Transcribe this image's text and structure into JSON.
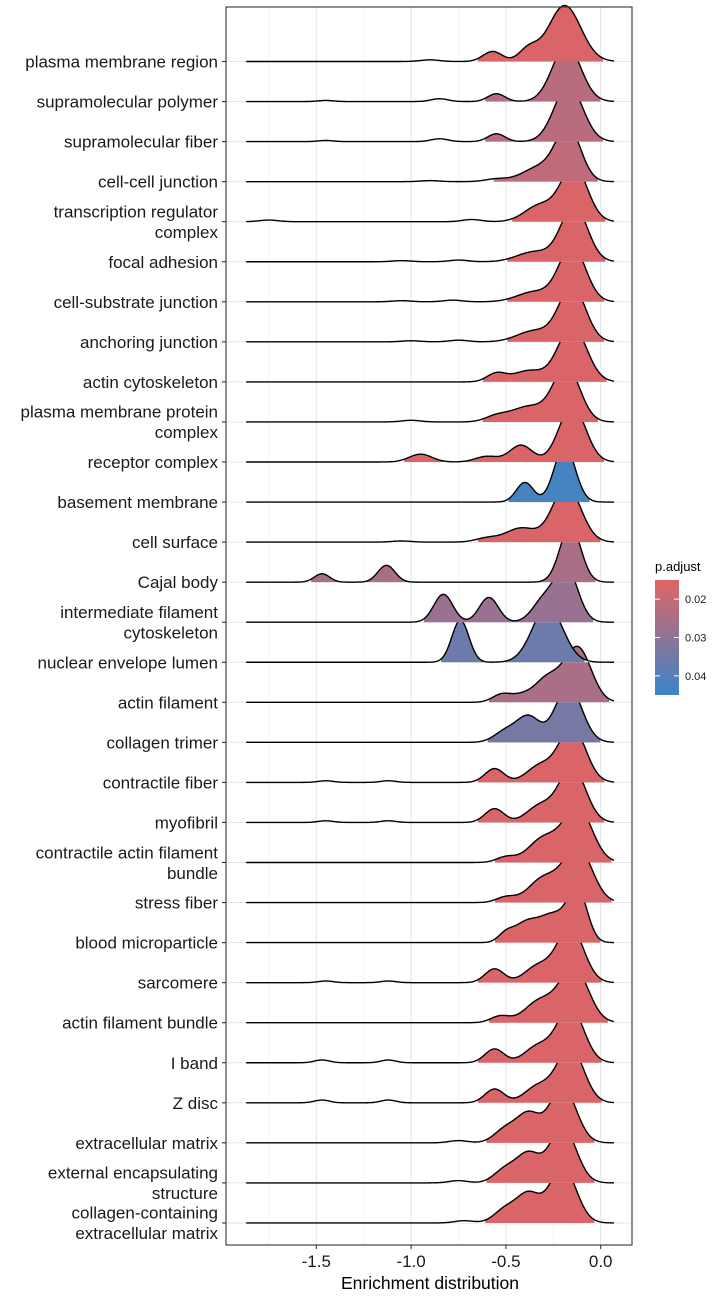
{
  "chart_data": {
    "type": "ridgeline",
    "xlabel": "Enrichment distribution",
    "ylabel": "",
    "xlim": [
      -1.97,
      0.17
    ],
    "x_ticks": [
      {
        "value": -1.5,
        "label": "-1.5"
      },
      {
        "value": -1.0,
        "label": "-1.0"
      },
      {
        "value": -0.5,
        "label": "-0.5"
      },
      {
        "value": 0.0,
        "label": "0.0"
      }
    ],
    "grid": true,
    "data_start": -1.87,
    "data_end": 0.07,
    "legend": {
      "title": "p.adjust",
      "position": "right",
      "min": 0.015,
      "max": 0.045,
      "ticks": [
        {
          "value": 0.02,
          "label": "0.02"
        },
        {
          "value": 0.03,
          "label": "0.03"
        },
        {
          "value": 0.04,
          "label": "0.04"
        }
      ],
      "color_low": "#E06466",
      "color_high": "#3A85C8"
    },
    "series": [
      {
        "lines": [
          "plasma membrane region"
        ],
        "p_adjust": 0.016,
        "peaks": [
          [
            -0.19,
            0.085,
            1.0
          ],
          [
            -0.38,
            0.05,
            0.22
          ],
          [
            -0.57,
            0.05,
            0.18
          ],
          [
            -0.9,
            0.05,
            0.03
          ]
        ]
      },
      {
        "lines": [
          "supramolecular polymer"
        ],
        "p_adjust": 0.022,
        "peaks": [
          [
            -0.18,
            0.075,
            1.0
          ],
          [
            -0.55,
            0.045,
            0.14
          ],
          [
            -0.85,
            0.045,
            0.05
          ],
          [
            -1.45,
            0.04,
            0.02
          ]
        ]
      },
      {
        "lines": [
          "supramolecular fiber"
        ],
        "p_adjust": 0.022,
        "peaks": [
          [
            -0.17,
            0.075,
            1.0
          ],
          [
            -0.55,
            0.045,
            0.14
          ],
          [
            -0.85,
            0.045,
            0.05
          ],
          [
            -1.45,
            0.04,
            0.02
          ]
        ]
      },
      {
        "lines": [
          "cell-cell junction"
        ],
        "p_adjust": 0.021,
        "peaks": [
          [
            -0.17,
            0.065,
            1.0
          ],
          [
            -0.32,
            0.09,
            0.28
          ],
          [
            -0.55,
            0.06,
            0.05
          ],
          [
            -0.9,
            0.05,
            0.02
          ]
        ]
      },
      {
        "lines": [
          "transcription regulator",
          "complex"
        ],
        "p_adjust": 0.016,
        "peaks": [
          [
            -0.14,
            0.07,
            1.0
          ],
          [
            -0.32,
            0.08,
            0.3
          ],
          [
            -0.68,
            0.05,
            0.04
          ],
          [
            -1.75,
            0.05,
            0.03
          ]
        ]
      },
      {
        "lines": [
          "focal adhesion"
        ],
        "p_adjust": 0.016,
        "peaks": [
          [
            -0.14,
            0.07,
            1.0
          ],
          [
            -0.35,
            0.09,
            0.18
          ],
          [
            -0.75,
            0.05,
            0.03
          ],
          [
            -1.05,
            0.05,
            0.02
          ]
        ]
      },
      {
        "lines": [
          "cell-substrate junction"
        ],
        "p_adjust": 0.016,
        "peaks": [
          [
            -0.15,
            0.07,
            1.0
          ],
          [
            -0.35,
            0.09,
            0.18
          ],
          [
            -0.78,
            0.05,
            0.03
          ],
          [
            -1.05,
            0.05,
            0.02
          ]
        ]
      },
      {
        "lines": [
          "anchoring junction"
        ],
        "p_adjust": 0.016,
        "peaks": [
          [
            -0.15,
            0.07,
            1.0
          ],
          [
            -0.35,
            0.09,
            0.2
          ],
          [
            -0.75,
            0.05,
            0.03
          ],
          [
            -1.0,
            0.05,
            0.02
          ]
        ]
      },
      {
        "lines": [
          "actin cytoskeleton"
        ],
        "p_adjust": 0.016,
        "peaks": [
          [
            -0.15,
            0.075,
            1.0
          ],
          [
            -0.38,
            0.08,
            0.2
          ],
          [
            -0.55,
            0.05,
            0.15
          ]
        ]
      },
      {
        "lines": [
          "plasma membrane protein",
          "complex"
        ],
        "p_adjust": 0.016,
        "peaks": [
          [
            -0.18,
            0.07,
            1.0
          ],
          [
            -0.38,
            0.09,
            0.28
          ],
          [
            -0.55,
            0.06,
            0.1
          ],
          [
            -1.0,
            0.05,
            0.03
          ]
        ]
      },
      {
        "lines": [
          "receptor complex"
        ],
        "p_adjust": 0.016,
        "peaks": [
          [
            -0.15,
            0.07,
            1.0
          ],
          [
            -0.42,
            0.06,
            0.3
          ],
          [
            -0.6,
            0.06,
            0.1
          ],
          [
            -0.95,
            0.06,
            0.14
          ]
        ]
      },
      {
        "lines": [
          "basement membrane"
        ],
        "p_adjust": 0.043,
        "peaks": [
          [
            -0.19,
            0.055,
            1.0
          ],
          [
            -0.4,
            0.045,
            0.35
          ]
        ]
      },
      {
        "lines": [
          "cell surface"
        ],
        "p_adjust": 0.016,
        "peaks": [
          [
            -0.18,
            0.075,
            1.0
          ],
          [
            -0.42,
            0.08,
            0.25
          ],
          [
            -0.6,
            0.06,
            0.07
          ],
          [
            -1.05,
            0.05,
            0.02
          ]
        ]
      },
      {
        "lines": [
          "Cajal body"
        ],
        "p_adjust": 0.025,
        "peaks": [
          [
            -0.16,
            0.055,
            1.0
          ],
          [
            -1.13,
            0.045,
            0.3
          ],
          [
            -1.47,
            0.04,
            0.15
          ]
        ]
      },
      {
        "lines": [
          "intermediate filament",
          "cytoskeleton"
        ],
        "p_adjust": 0.028,
        "peaks": [
          [
            -0.18,
            0.06,
            0.85
          ],
          [
            -0.3,
            0.06,
            0.35
          ],
          [
            -0.59,
            0.05,
            0.4
          ],
          [
            -0.83,
            0.05,
            0.45
          ]
        ]
      },
      {
        "lines": [
          "nuclear envelope lumen"
        ],
        "p_adjust": 0.036,
        "peaks": [
          [
            -0.28,
            0.08,
            0.8
          ],
          [
            -0.74,
            0.045,
            0.6
          ]
        ]
      },
      {
        "lines": [
          "actin filament"
        ],
        "p_adjust": 0.025,
        "peaks": [
          [
            -0.12,
            0.07,
            1.0
          ],
          [
            -0.28,
            0.07,
            0.45
          ],
          [
            -0.52,
            0.05,
            0.15
          ],
          [
            -0.42,
            0.05,
            0.1
          ]
        ]
      },
      {
        "lines": [
          "collagen trimer"
        ],
        "p_adjust": 0.034,
        "peaks": [
          [
            -0.17,
            0.07,
            1.0
          ],
          [
            -0.38,
            0.06,
            0.45
          ],
          [
            -0.5,
            0.06,
            0.2
          ]
        ]
      },
      {
        "lines": [
          "contractile fiber"
        ],
        "p_adjust": 0.016,
        "peaks": [
          [
            -0.15,
            0.07,
            1.0
          ],
          [
            -0.32,
            0.07,
            0.3
          ],
          [
            -0.56,
            0.05,
            0.25
          ],
          [
            -1.12,
            0.04,
            0.03
          ],
          [
            -1.45,
            0.04,
            0.03
          ]
        ]
      },
      {
        "lines": [
          "myofibril"
        ],
        "p_adjust": 0.016,
        "peaks": [
          [
            -0.15,
            0.07,
            1.0
          ],
          [
            -0.32,
            0.07,
            0.3
          ],
          [
            -0.56,
            0.05,
            0.25
          ],
          [
            -1.12,
            0.04,
            0.03
          ],
          [
            -1.45,
            0.04,
            0.03
          ]
        ]
      },
      {
        "lines": [
          "contractile actin filament",
          "bundle"
        ],
        "p_adjust": 0.016,
        "peaks": [
          [
            -0.12,
            0.075,
            1.0
          ],
          [
            -0.3,
            0.08,
            0.45
          ],
          [
            -0.5,
            0.05,
            0.1
          ]
        ]
      },
      {
        "lines": [
          "stress fiber"
        ],
        "p_adjust": 0.016,
        "peaks": [
          [
            -0.12,
            0.075,
            1.0
          ],
          [
            -0.3,
            0.08,
            0.45
          ],
          [
            -0.5,
            0.05,
            0.1
          ]
        ]
      },
      {
        "lines": [
          "blood microparticle"
        ],
        "p_adjust": 0.016,
        "peaks": [
          [
            -0.12,
            0.05,
            0.85
          ],
          [
            -0.25,
            0.08,
            0.5
          ],
          [
            -0.4,
            0.06,
            0.3
          ],
          [
            -0.5,
            0.04,
            0.15
          ]
        ]
      },
      {
        "lines": [
          "sarcomere"
        ],
        "p_adjust": 0.016,
        "peaks": [
          [
            -0.16,
            0.07,
            1.0
          ],
          [
            -0.33,
            0.07,
            0.3
          ],
          [
            -0.56,
            0.05,
            0.25
          ],
          [
            -1.12,
            0.04,
            0.03
          ],
          [
            -1.45,
            0.04,
            0.03
          ]
        ]
      },
      {
        "lines": [
          "actin filament bundle"
        ],
        "p_adjust": 0.016,
        "peaks": [
          [
            -0.14,
            0.075,
            1.0
          ],
          [
            -0.32,
            0.08,
            0.4
          ],
          [
            -0.53,
            0.05,
            0.12
          ]
        ]
      },
      {
        "lines": [
          "I band"
        ],
        "p_adjust": 0.016,
        "peaks": [
          [
            -0.16,
            0.07,
            1.0
          ],
          [
            -0.33,
            0.07,
            0.3
          ],
          [
            -0.56,
            0.05,
            0.25
          ],
          [
            -1.12,
            0.04,
            0.05
          ],
          [
            -1.47,
            0.04,
            0.05
          ]
        ]
      },
      {
        "lines": [
          "Z disc"
        ],
        "p_adjust": 0.016,
        "peaks": [
          [
            -0.16,
            0.07,
            1.0
          ],
          [
            -0.33,
            0.07,
            0.3
          ],
          [
            -0.56,
            0.05,
            0.25
          ],
          [
            -1.12,
            0.04,
            0.05
          ],
          [
            -1.47,
            0.04,
            0.05
          ]
        ]
      },
      {
        "lines": [
          "extracellular matrix"
        ],
        "p_adjust": 0.016,
        "peaks": [
          [
            -0.2,
            0.07,
            1.0
          ],
          [
            -0.38,
            0.06,
            0.5
          ],
          [
            -0.5,
            0.06,
            0.25
          ],
          [
            -0.75,
            0.05,
            0.04
          ]
        ]
      },
      {
        "lines": [
          "external encapsulating",
          "structure"
        ],
        "p_adjust": 0.016,
        "peaks": [
          [
            -0.2,
            0.07,
            1.0
          ],
          [
            -0.38,
            0.06,
            0.5
          ],
          [
            -0.5,
            0.06,
            0.25
          ],
          [
            -0.75,
            0.05,
            0.04
          ]
        ]
      },
      {
        "lines": [
          "collagen-containing",
          "extracellular matrix"
        ],
        "p_adjust": 0.016,
        "peaks": [
          [
            -0.2,
            0.07,
            1.0
          ],
          [
            -0.38,
            0.06,
            0.5
          ],
          [
            -0.5,
            0.06,
            0.25
          ],
          [
            -0.72,
            0.05,
            0.04
          ]
        ]
      }
    ]
  }
}
